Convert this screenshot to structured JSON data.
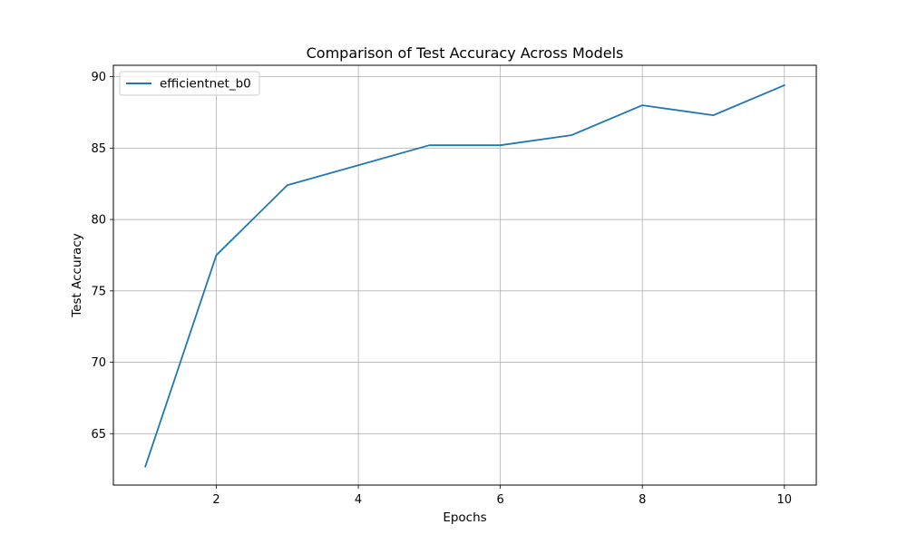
{
  "chart_data": {
    "type": "line",
    "title": "Comparison of Test Accuracy Across Models",
    "xlabel": "Epochs",
    "ylabel": "Test Accuracy",
    "x": [
      1,
      2,
      3,
      4,
      5,
      6,
      7,
      8,
      9,
      10
    ],
    "series": [
      {
        "name": "efficientnet_b0",
        "color": "#1f77b4",
        "values": [
          62.7,
          77.5,
          82.4,
          83.8,
          85.2,
          85.2,
          85.9,
          88.0,
          87.3,
          89.4
        ]
      }
    ],
    "xlim": [
      0.55,
      10.45
    ],
    "ylim": [
      61.4,
      90.8
    ],
    "xticks": [
      2,
      4,
      6,
      8,
      10
    ],
    "yticks": [
      65,
      70,
      75,
      80,
      85,
      90
    ],
    "grid": true,
    "legend": "upper-left"
  }
}
